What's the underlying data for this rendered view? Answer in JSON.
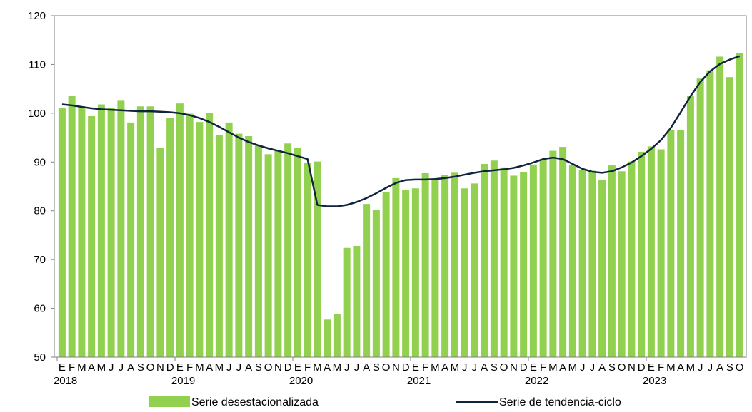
{
  "chart_data": {
    "type": "bar",
    "title": "",
    "xlabel": "",
    "ylabel": "",
    "ylim": [
      50,
      120
    ],
    "yticks": [
      50,
      60,
      70,
      80,
      90,
      100,
      110,
      120
    ],
    "grid": false,
    "legend_placement": "bottom",
    "years": [
      "2018",
      "2019",
      "2020",
      "2021",
      "2022",
      "2023"
    ],
    "month_labels": [
      "E",
      "F",
      "M",
      "A",
      "M",
      "J",
      "J",
      "A",
      "S",
      "O",
      "N",
      "D",
      "E",
      "F",
      "M",
      "A",
      "M",
      "J",
      "J",
      "A",
      "S",
      "O",
      "N",
      "D",
      "E",
      "F",
      "M",
      "A",
      "M",
      "J",
      "J",
      "A",
      "S",
      "O",
      "N",
      "D",
      "E",
      "F",
      "M",
      "A",
      "M",
      "J",
      "J",
      "A",
      "S",
      "O",
      "N",
      "D",
      "E",
      "F",
      "M",
      "A",
      "M",
      "J",
      "J",
      "A",
      "S",
      "O",
      "N",
      "D",
      "E",
      "F",
      "M",
      "A",
      "M",
      "J",
      "J",
      "A",
      "S",
      "O"
    ],
    "series": [
      {
        "name": "Serie desestacionalizada",
        "type": "bar",
        "color": "#92d050",
        "values": [
          101.1,
          103.6,
          101.3,
          99.4,
          101.8,
          101.0,
          102.7,
          98.1,
          101.4,
          101.4,
          92.9,
          99.0,
          102.0,
          99.9,
          98.2,
          100.0,
          95.6,
          98.1,
          95.8,
          95.3,
          93.5,
          91.6,
          92.4,
          93.8,
          92.9,
          89.8,
          90.1,
          57.7,
          58.9,
          72.4,
          72.8,
          81.4,
          80.1,
          83.8,
          86.7,
          84.3,
          84.6,
          87.7,
          86.3,
          87.4,
          87.8,
          84.6,
          85.6,
          89.6,
          90.3,
          88.9,
          87.2,
          88.0,
          89.5,
          90.5,
          92.3,
          93.1,
          89.3,
          88.4,
          88.2,
          86.4,
          89.3,
          88.1,
          90.1,
          92.1,
          93.2,
          92.6,
          96.6,
          96.6,
          103.6,
          107.1,
          108.8,
          111.6,
          107.4,
          112.3
        ]
      },
      {
        "name": "Serie de tendencia-ciclo",
        "type": "line",
        "color": "#0f243e",
        "values": [
          101.8,
          101.6,
          101.3,
          101.0,
          100.8,
          100.7,
          100.6,
          100.5,
          100.4,
          100.4,
          100.3,
          100.2,
          100.0,
          99.6,
          99.0,
          98.2,
          97.2,
          96.1,
          95.0,
          94.1,
          93.4,
          92.8,
          92.3,
          91.8,
          91.2,
          90.6,
          81.2,
          80.9,
          80.9,
          81.2,
          81.8,
          82.6,
          83.6,
          84.7,
          85.7,
          86.3,
          86.4,
          86.4,
          86.5,
          86.7,
          87.0,
          87.4,
          87.8,
          88.1,
          88.3,
          88.5,
          88.8,
          89.3,
          89.9,
          90.6,
          90.9,
          90.6,
          89.6,
          88.6,
          88.0,
          87.8,
          88.1,
          88.9,
          89.9,
          91.2,
          92.7,
          94.5,
          97.0,
          100.2,
          103.5,
          106.4,
          108.6,
          110.1,
          111.0,
          111.7
        ]
      }
    ]
  }
}
